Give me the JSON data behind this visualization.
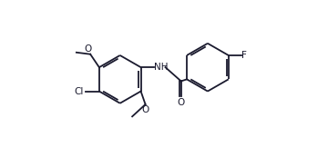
{
  "bg_color": "#ffffff",
  "line_color": "#1a1a2e",
  "line_width": 1.3,
  "font_size": 7.5,
  "fig_width": 3.6,
  "fig_height": 1.84,
  "dpi": 100,
  "xlim": [
    0,
    10
  ],
  "ylim": [
    0,
    5.1
  ]
}
